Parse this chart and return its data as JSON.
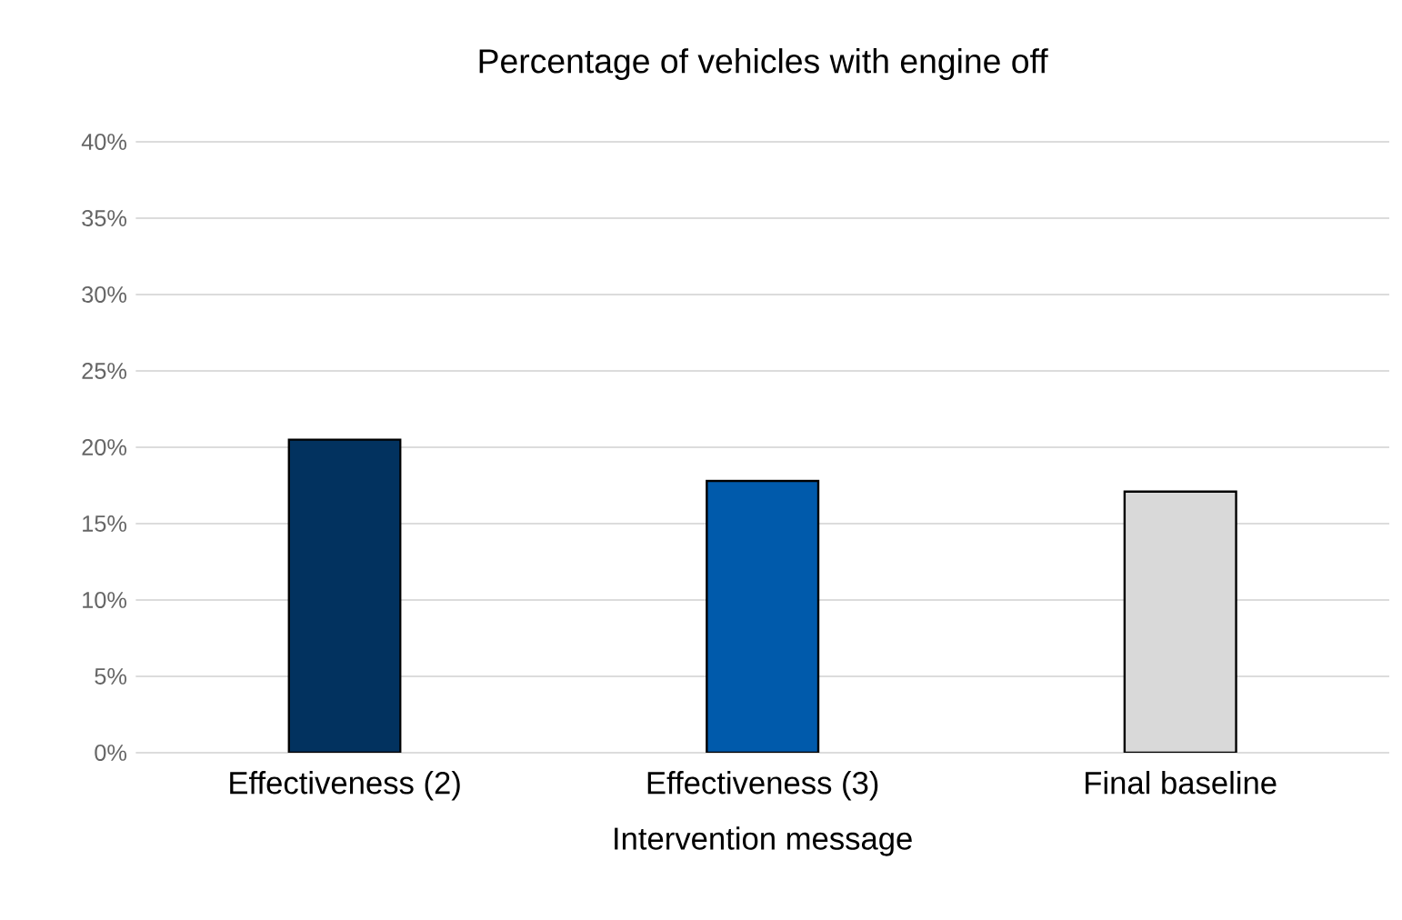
{
  "chart_data": {
    "type": "bar",
    "title": "Percentage of vehicles with engine off",
    "xlabel": "Intervention message",
    "categories": [
      "Effectiveness (2)",
      "Effectiveness (3)",
      "Final baseline"
    ],
    "values": [
      20.5,
      17.8,
      17.1
    ],
    "colors": [
      "#02325f",
      "#005aab",
      "#d9d9d9"
    ],
    "ylim": [
      0,
      40
    ],
    "yticks": [
      {
        "value": 0,
        "label": "0%"
      },
      {
        "value": 5,
        "label": "5%"
      },
      {
        "value": 10,
        "label": "10%"
      },
      {
        "value": 15,
        "label": "15%"
      },
      {
        "value": 20,
        "label": "20%"
      },
      {
        "value": 25,
        "label": "25%"
      },
      {
        "value": 30,
        "label": "30%"
      },
      {
        "value": 35,
        "label": "35%"
      },
      {
        "value": 40,
        "label": "40%"
      }
    ],
    "grid": "y"
  }
}
